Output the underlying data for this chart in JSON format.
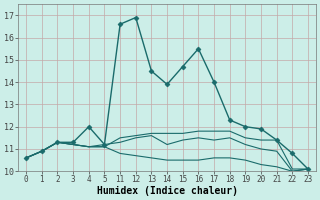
{
  "xlabel": "Humidex (Indice chaleur)",
  "bg_color": "#cceee8",
  "grid_color": "#c4a8a8",
  "line_color": "#1a6b6b",
  "xlabels": [
    "0",
    "1",
    "2",
    "3",
    "4",
    "5",
    "11",
    "12",
    "13",
    "14",
    "15",
    "16",
    "17",
    "18",
    "19",
    "20",
    "21",
    "22",
    "23"
  ],
  "ylim": [
    10.0,
    17.5
  ],
  "yticks": [
    10,
    11,
    12,
    13,
    14,
    15,
    16,
    17
  ],
  "series": [
    {
      "y": [
        10.6,
        10.9,
        11.3,
        11.3,
        12.0,
        11.2,
        16.6,
        16.9,
        14.5,
        13.9,
        14.7,
        15.5,
        14.0,
        12.3,
        12.0,
        11.9,
        11.4,
        10.8,
        10.1
      ],
      "marker": "D",
      "markersize": 2.5,
      "linewidth": 1.0,
      "dotted": false
    },
    {
      "y": [
        10.6,
        10.9,
        11.3,
        11.2,
        11.1,
        11.1,
        11.5,
        11.6,
        11.7,
        11.7,
        11.7,
        11.8,
        11.8,
        11.8,
        11.5,
        11.4,
        11.4,
        10.1,
        10.1
      ],
      "marker": null,
      "markersize": 0,
      "linewidth": 0.8,
      "dotted": false
    },
    {
      "y": [
        10.6,
        10.9,
        11.3,
        11.2,
        11.1,
        11.2,
        11.3,
        11.5,
        11.6,
        11.2,
        11.4,
        11.5,
        11.4,
        11.5,
        11.2,
        11.0,
        10.9,
        10.0,
        10.1
      ],
      "marker": null,
      "markersize": 0,
      "linewidth": 0.8,
      "dotted": false
    },
    {
      "y": [
        10.6,
        10.9,
        11.3,
        11.2,
        11.1,
        11.1,
        10.8,
        10.7,
        10.6,
        10.5,
        10.5,
        10.5,
        10.6,
        10.6,
        10.5,
        10.3,
        10.2,
        10.0,
        10.1
      ],
      "marker": null,
      "markersize": 0,
      "linewidth": 0.8,
      "dotted": false
    }
  ]
}
